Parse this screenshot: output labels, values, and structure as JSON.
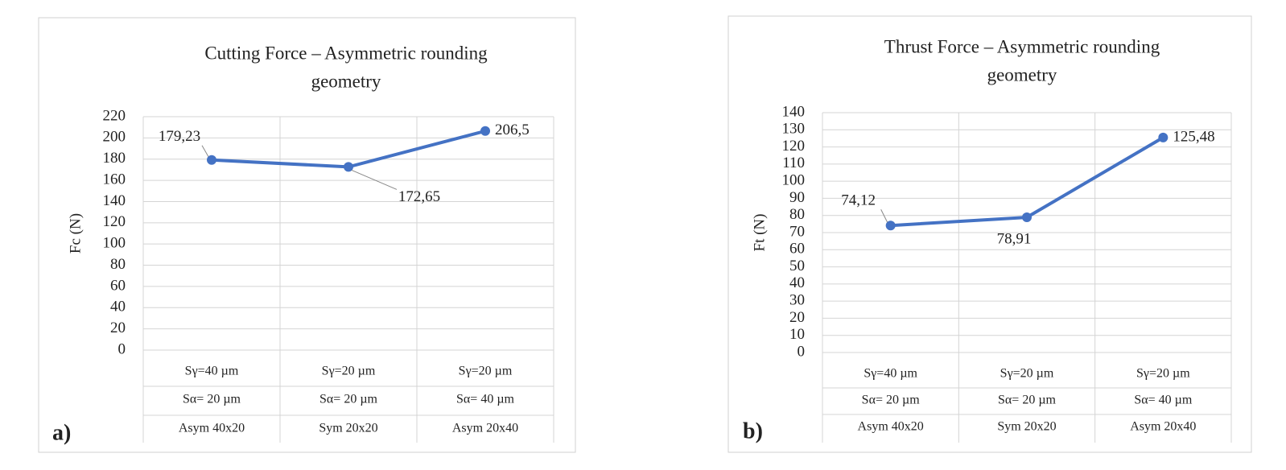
{
  "chart_data": [
    {
      "type": "line",
      "panel_label": "a)",
      "title": [
        "Cutting Force – Asymmetric rounding",
        "geometry"
      ],
      "y_label": "Fc (N)",
      "categories": [
        [
          "Sγ=40 µm",
          "Sα= 20 µm",
          "Asym 40x20"
        ],
        [
          "Sγ=20 µm",
          "Sα= 20 µm",
          "Sym 20x20"
        ],
        [
          "Sγ=20 µm",
          "Sα= 40 µm",
          "Asym 20x40"
        ]
      ],
      "series": [
        {
          "color": "#4472c4",
          "values": [
            179.23,
            172.65,
            206.5
          ],
          "value_labels": [
            "179,23",
            "172,65",
            "206,5"
          ]
        }
      ],
      "ylim": [
        0,
        220
      ],
      "yticks": [
        0,
        20,
        40,
        60,
        80,
        100,
        120,
        140,
        160,
        180,
        200,
        220
      ],
      "grid": true
    },
    {
      "type": "line",
      "panel_label": "b)",
      "title": [
        "Thrust Force – Asymmetric rounding",
        "geometry"
      ],
      "y_label": "Ft (N)",
      "categories": [
        [
          "Sγ=40 µm",
          "Sα= 20 µm",
          "Asym 40x20"
        ],
        [
          "Sγ=20 µm",
          "Sα= 20 µm",
          "Sym 20x20"
        ],
        [
          "Sγ=20 µm",
          "Sα= 40 µm",
          "Asym 20x40"
        ]
      ],
      "series": [
        {
          "color": "#4472c4",
          "values": [
            74.12,
            78.91,
            125.48
          ],
          "value_labels": [
            "74,12",
            "78,91",
            "125,48"
          ]
        }
      ],
      "ylim": [
        0,
        140
      ],
      "yticks": [
        0,
        10,
        20,
        30,
        40,
        50,
        60,
        70,
        80,
        90,
        100,
        110,
        120,
        130,
        140
      ],
      "grid": true
    }
  ]
}
